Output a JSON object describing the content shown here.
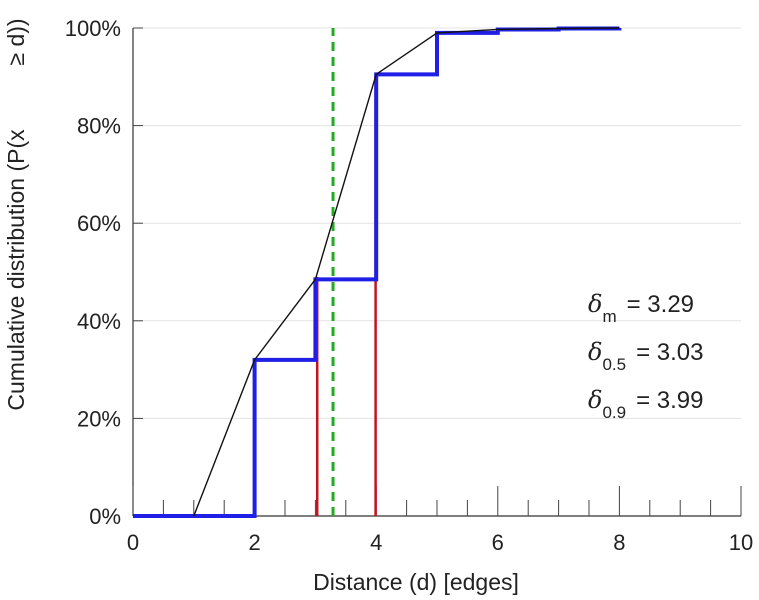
{
  "chart_data": {
    "type": "line",
    "title": "",
    "xlabel": "Distance (d) [edges]",
    "ylabel_line1": "Cumulative distribution (P(x",
    "ylabel_line2": "≥ d))",
    "xlim": [
      0,
      10
    ],
    "ylim": [
      0,
      1
    ],
    "x_ticks": [
      0,
      2,
      4,
      6,
      8,
      10
    ],
    "x_tick_labels": [
      "0",
      "2",
      "4",
      "6",
      "8",
      "10"
    ],
    "y_ticks": [
      0,
      0.2,
      0.4,
      0.6,
      0.8,
      1.0
    ],
    "y_tick_labels": [
      "0%",
      "20%",
      "40%",
      "60%",
      "80%",
      "100%"
    ],
    "grid": "horizontal",
    "series": [
      {
        "style": "step",
        "color": "#1f1fe6",
        "x": [
          0,
          1,
          2,
          3,
          4,
          5,
          6,
          7,
          8
        ],
        "y": [
          0,
          0,
          0.32,
          0.485,
          0.905,
          0.99,
          0.997,
          0.999,
          1.0
        ]
      },
      {
        "style": "line",
        "color": "#111111",
        "x": [
          1,
          2,
          3,
          4,
          5,
          6,
          7,
          8
        ],
        "y": [
          0,
          0.32,
          0.485,
          0.905,
          0.99,
          0.997,
          0.999,
          1.0
        ]
      }
    ],
    "vertical_lines": [
      {
        "x": 3.03,
        "y_top": 0.49,
        "color": "#c0141e",
        "style": "solid"
      },
      {
        "x": 3.99,
        "y_top": 0.905,
        "color": "#c0141e",
        "style": "solid"
      },
      {
        "x": 3.29,
        "y_top": 1.0,
        "color": "#22aa22",
        "style": "dashed"
      }
    ],
    "annotations": [
      {
        "symbol": "δ",
        "sub": "m",
        "text": "= 3.29"
      },
      {
        "symbol": "δ",
        "sub": "0.5",
        "text": "= 3.03"
      },
      {
        "symbol": "δ",
        "sub": "0.9",
        "text": "= 3.99"
      }
    ]
  }
}
